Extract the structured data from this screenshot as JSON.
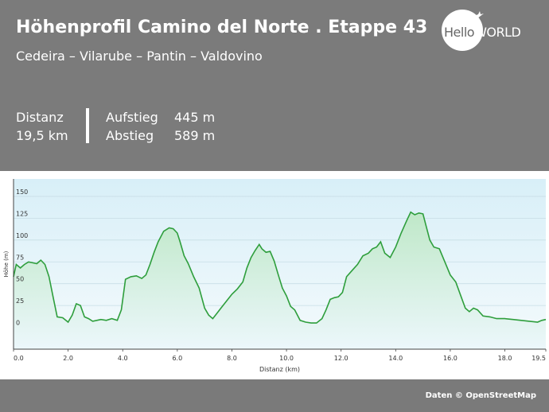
{
  "header": {
    "title": "Höhenprofil Camino del Norte . Etappe 43",
    "subtitle": "Cedeira – Vilarube – Pantin – Valdovino",
    "logo": {
      "hello": "Hello",
      "world": "WORLD"
    }
  },
  "stats": {
    "distance_label": "Distanz",
    "distance_value": "19,5 km",
    "ascent_label": "Aufstieg",
    "ascent_value": "445 m",
    "descent_label": "Abstieg",
    "descent_value": "589 m"
  },
  "footer": {
    "credit": "Daten © OpenStreetMap"
  },
  "colors": {
    "line": "#2e9e3c",
    "fill_top": "#bfe8c8",
    "fill_bottom": "#ecf7fb",
    "header_bg": "#7b7b7b"
  },
  "chart_data": {
    "type": "area",
    "xlabel": "Distanz  (km)",
    "ylabel": "Höhe (m)",
    "xlim": [
      0,
      19.5
    ],
    "ylim": [
      -25,
      170
    ],
    "grid": true,
    "x_ticks": [
      "0.0",
      "2.0",
      "4.0",
      "6.0",
      "8.0",
      "10.0",
      "12.0",
      "14.0",
      "16.0",
      "18.0",
      "19.5"
    ],
    "y_ticks": [
      "0",
      "25",
      "50",
      "75",
      "100",
      "125",
      "150"
    ],
    "x": [
      0,
      0.1,
      0.25,
      0.4,
      0.55,
      0.7,
      0.85,
      1.0,
      1.15,
      1.3,
      1.45,
      1.6,
      1.8,
      2.0,
      2.15,
      2.3,
      2.45,
      2.6,
      2.75,
      2.9,
      3.05,
      3.2,
      3.4,
      3.6,
      3.8,
      3.95,
      4.1,
      4.3,
      4.5,
      4.7,
      4.85,
      5.0,
      5.15,
      5.3,
      5.5,
      5.7,
      5.85,
      6.0,
      6.1,
      6.25,
      6.4,
      6.6,
      6.8,
      7.0,
      7.15,
      7.3,
      7.45,
      7.6,
      7.8,
      8.0,
      8.2,
      8.4,
      8.55,
      8.7,
      8.85,
      9.0,
      9.1,
      9.25,
      9.4,
      9.55,
      9.7,
      9.85,
      10.0,
      10.15,
      10.3,
      10.5,
      10.7,
      10.9,
      11.1,
      11.3,
      11.45,
      11.6,
      11.75,
      11.9,
      12.05,
      12.2,
      12.4,
      12.6,
      12.8,
      13.0,
      13.15,
      13.3,
      13.45,
      13.6,
      13.8,
      14.0,
      14.2,
      14.4,
      14.55,
      14.7,
      14.85,
      15.0,
      15.1,
      15.25,
      15.4,
      15.6,
      15.8,
      16.0,
      16.2,
      16.4,
      16.55,
      16.7,
      16.85,
      17.0,
      17.2,
      17.45,
      17.7,
      18.0,
      18.3,
      18.6,
      18.9,
      19.2,
      19.35,
      19.5
    ],
    "series": [
      {
        "values": [
          58,
          72,
          68,
          72,
          75,
          74,
          73,
          77,
          72,
          58,
          35,
          12,
          11,
          6,
          14,
          27,
          25,
          12,
          10,
          7,
          8,
          9,
          8,
          10,
          8,
          20,
          55,
          58,
          59,
          56,
          60,
          72,
          86,
          98,
          110,
          114,
          113,
          108,
          98,
          82,
          73,
          58,
          45,
          22,
          14,
          10,
          16,
          22,
          30,
          38,
          44,
          52,
          68,
          80,
          88,
          95,
          90,
          86,
          87,
          76,
          60,
          45,
          36,
          24,
          20,
          8,
          6,
          5,
          5,
          10,
          20,
          32,
          34,
          35,
          40,
          58,
          65,
          72,
          82,
          85,
          90,
          92,
          98,
          85,
          80,
          92,
          108,
          122,
          132,
          129,
          131,
          130,
          118,
          100,
          92,
          90,
          75,
          60,
          52,
          35,
          22,
          18,
          22,
          20,
          13,
          12,
          10,
          10,
          9,
          8,
          7,
          6,
          8,
          9
        ]
      }
    ]
  }
}
